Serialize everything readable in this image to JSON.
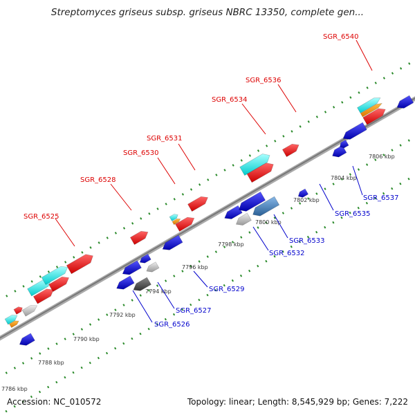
{
  "title": "Streptomyces griseus subsp. griseus NBRC 13350, complete gen...",
  "footer": {
    "accession": "Accession: NC_010572",
    "summary": "Topology: linear; Length: 8,545,929 bp; Genes: 7,222"
  },
  "colors": {
    "forward_label": "#dd0000",
    "reverse_label": "#0000cc",
    "axis": "#888888",
    "dots": "#2a8a2a",
    "red": "#ee1111",
    "blue": "#1a1ad6",
    "cyan": "#22e8e8",
    "orange": "#ff9900",
    "gray": "#bbbbbb",
    "darkgray": "#555555",
    "steelblue": "#4a7fb5"
  },
  "scale_ticks": [
    "7786 kbp",
    "7788 kbp",
    "7790 kbp",
    "7792 kbp",
    "7794 kbp",
    "7796 kbp",
    "7798 kbp",
    "7800 kbp",
    "7802 kbp",
    "7804 kbp",
    "7806 kbp"
  ],
  "forward_labels": [
    "SGR_6525",
    "SGR_6528",
    "SGR_6530",
    "SGR_6531",
    "SGR_6534",
    "SGR_6536",
    "SGR_6540"
  ],
  "reverse_labels": [
    "SGR_6526",
    "SGR_6527",
    "SGR_6529",
    "SGR_6532",
    "SGR_6533",
    "SGR_6535",
    "SGR_6537"
  ]
}
